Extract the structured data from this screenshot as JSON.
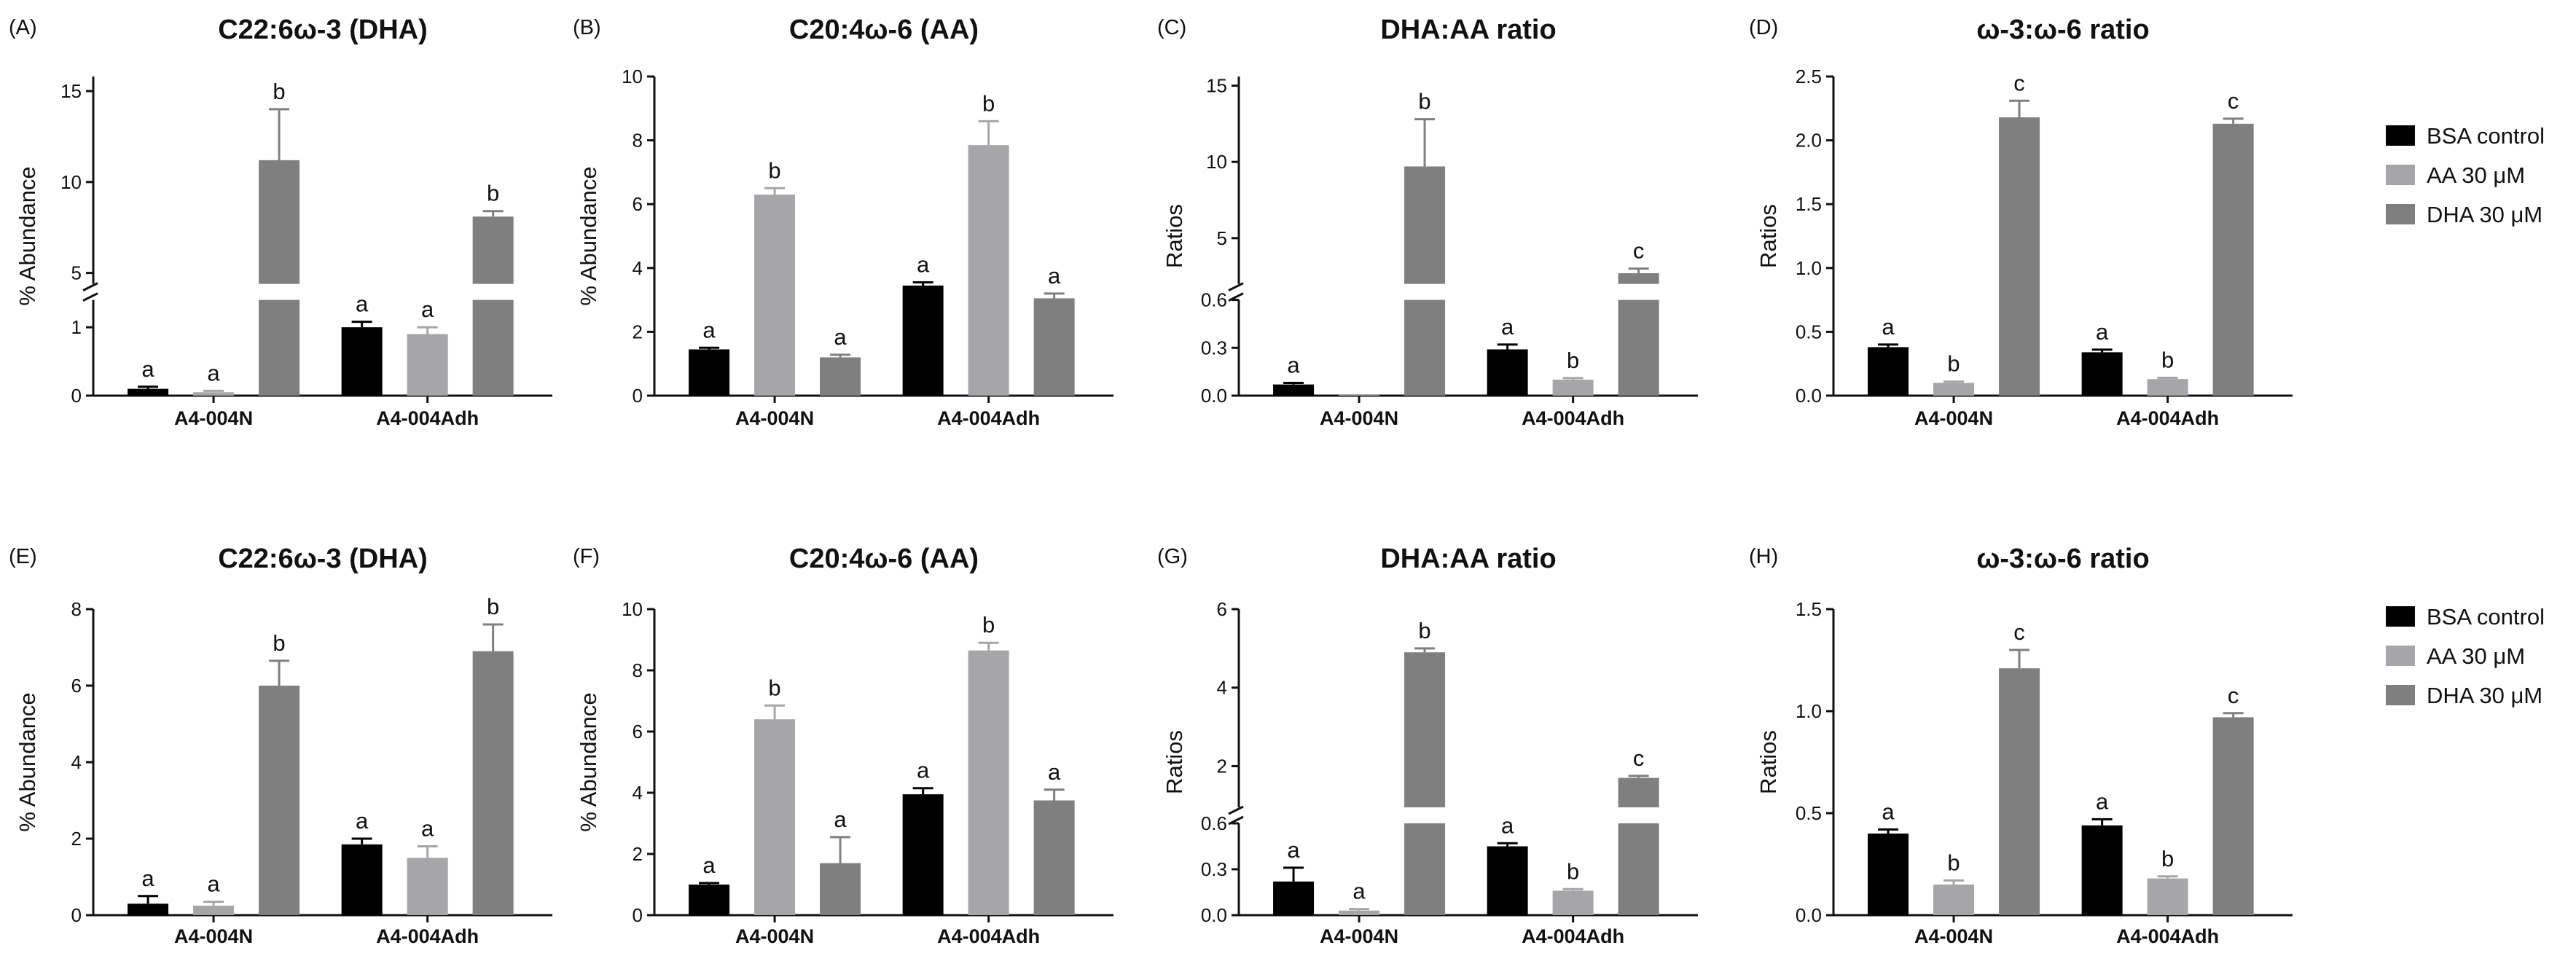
{
  "colors": {
    "bsa": "#000000",
    "aa": "#a6a6a8",
    "dha": "#7f7f7f",
    "axis": "#111111"
  },
  "legends": [
    {
      "entries": [
        {
          "name": "BSA control",
          "color": "#000000"
        },
        {
          "name": "AA 30 μM",
          "color": "#a6a6a8"
        },
        {
          "name": "DHA 30 μM",
          "color": "#7f7f7f"
        }
      ]
    },
    {
      "entries": [
        {
          "name": "BSA control",
          "color": "#000000"
        },
        {
          "name": "AA 30 μM",
          "color": "#a6a6a8"
        },
        {
          "name": "DHA 30 μM",
          "color": "#7f7f7f"
        }
      ]
    }
  ],
  "chart_data": [
    {
      "type": "bar",
      "letter": "(A)",
      "title": "C22:6ω-3 (DHA)",
      "ylabel": "% Abundance",
      "categories": [
        "A4-004N",
        "A4-004Adh"
      ],
      "broken_axis": true,
      "lower_range": [
        0,
        1.4
      ],
      "lower_ticks": [
        0,
        1
      ],
      "upper_range": [
        4.4,
        15.8
      ],
      "upper_ticks": [
        5,
        10,
        15
      ],
      "series": [
        {
          "name": "BSA control",
          "values": [
            0.1,
            1.0
          ],
          "errors": [
            0.03,
            0.08
          ],
          "labels": [
            "a",
            "a"
          ]
        },
        {
          "name": "AA 30 μM",
          "values": [
            0.05,
            0.9
          ],
          "errors": [
            0.02,
            0.1
          ],
          "labels": [
            "a",
            "a"
          ]
        },
        {
          "name": "DHA 30 μM",
          "values": [
            11.2,
            8.1
          ],
          "errors": [
            2.8,
            0.3
          ],
          "labels": [
            "b",
            "b"
          ]
        }
      ]
    },
    {
      "type": "bar",
      "letter": "(B)",
      "title": "C20:4ω-6 (AA)",
      "ylabel": "% Abundance",
      "categories": [
        "A4-004N",
        "A4-004Adh"
      ],
      "broken_axis": false,
      "ylim": [
        0,
        10
      ],
      "yticks": [
        0,
        2,
        4,
        6,
        8,
        10
      ],
      "series": [
        {
          "name": "BSA control",
          "values": [
            1.45,
            3.45
          ],
          "errors": [
            0.05,
            0.1
          ],
          "labels": [
            "a",
            "a"
          ]
        },
        {
          "name": "AA 30 μM",
          "values": [
            6.3,
            7.85
          ],
          "errors": [
            0.2,
            0.75
          ],
          "labels": [
            "b",
            "b"
          ]
        },
        {
          "name": "DHA 30 μM",
          "values": [
            1.2,
            3.05
          ],
          "errors": [
            0.08,
            0.15
          ],
          "labels": [
            "a",
            "a"
          ]
        }
      ]
    },
    {
      "type": "bar",
      "letter": "(C)",
      "title": "DHA:AA ratio",
      "ylabel": "Ratios",
      "categories": [
        "A4-004N",
        "A4-004Adh"
      ],
      "broken_axis": true,
      "lower_range": [
        0,
        0.6
      ],
      "lower_ticks": [
        0.0,
        0.3,
        0.6
      ],
      "upper_range": [
        2.0,
        15.6
      ],
      "upper_ticks": [
        5,
        10,
        15
      ],
      "series": [
        {
          "name": "BSA control",
          "values": [
            0.07,
            0.29
          ],
          "errors": [
            0.01,
            0.03
          ],
          "labels": [
            "a",
            "a"
          ]
        },
        {
          "name": "AA 30 μM",
          "values": [
            0.005,
            0.1
          ],
          "errors": [
            0.002,
            0.01
          ],
          "labels": [
            "",
            "b"
          ]
        },
        {
          "name": "DHA 30 μM",
          "values": [
            9.7,
            2.7
          ],
          "errors": [
            3.1,
            0.3
          ],
          "labels": [
            "b",
            "c"
          ]
        }
      ]
    },
    {
      "type": "bar",
      "letter": "(D)",
      "title": "ω-3:ω-6 ratio",
      "ylabel": "Ratios",
      "categories": [
        "A4-004N",
        "A4-004Adh"
      ],
      "broken_axis": false,
      "ylim": [
        0,
        2.5
      ],
      "yticks": [
        0.0,
        0.5,
        1.0,
        1.5,
        2.0,
        2.5
      ],
      "series": [
        {
          "name": "BSA control",
          "values": [
            0.38,
            0.34
          ],
          "errors": [
            0.02,
            0.02
          ],
          "labels": [
            "a",
            "a"
          ]
        },
        {
          "name": "AA 30 μM",
          "values": [
            0.1,
            0.13
          ],
          "errors": [
            0.01,
            0.01
          ],
          "labels": [
            "b",
            "b"
          ]
        },
        {
          "name": "DHA 30 μM",
          "values": [
            2.18,
            2.13
          ],
          "errors": [
            0.13,
            0.04
          ],
          "labels": [
            "c",
            "c"
          ]
        }
      ]
    },
    {
      "type": "bar",
      "letter": "(E)",
      "title": "C22:6ω-3 (DHA)",
      "ylabel": "% Abundance",
      "categories": [
        "A4-004N",
        "A4-004Adh"
      ],
      "broken_axis": false,
      "ylim": [
        0,
        8
      ],
      "yticks": [
        0,
        2,
        4,
        6,
        8
      ],
      "series": [
        {
          "name": "BSA control",
          "values": [
            0.3,
            1.85
          ],
          "errors": [
            0.2,
            0.15
          ],
          "labels": [
            "a",
            "a"
          ]
        },
        {
          "name": "AA 30 μM",
          "values": [
            0.25,
            1.5
          ],
          "errors": [
            0.1,
            0.3
          ],
          "labels": [
            "a",
            "a"
          ]
        },
        {
          "name": "DHA 30 μM",
          "values": [
            6.0,
            6.9
          ],
          "errors": [
            0.65,
            0.7
          ],
          "labels": [
            "b",
            "b"
          ]
        }
      ]
    },
    {
      "type": "bar",
      "letter": "(F)",
      "title": "C20:4ω-6 (AA)",
      "ylabel": "% Abundance",
      "categories": [
        "A4-004N",
        "A4-004Adh"
      ],
      "broken_axis": false,
      "ylim": [
        0,
        10
      ],
      "yticks": [
        0,
        2,
        4,
        6,
        8,
        10
      ],
      "series": [
        {
          "name": "BSA control",
          "values": [
            1.0,
            3.95
          ],
          "errors": [
            0.05,
            0.2
          ],
          "labels": [
            "a",
            "a"
          ]
        },
        {
          "name": "AA 30 μM",
          "values": [
            6.4,
            8.65
          ],
          "errors": [
            0.45,
            0.25
          ],
          "labels": [
            "b",
            "b"
          ]
        },
        {
          "name": "DHA 30 μM",
          "values": [
            1.7,
            3.75
          ],
          "errors": [
            0.85,
            0.35
          ],
          "labels": [
            "a",
            "a"
          ]
        }
      ]
    },
    {
      "type": "bar",
      "letter": "(G)",
      "title": "DHA:AA ratio",
      "ylabel": "Ratios",
      "categories": [
        "A4-004N",
        "A4-004Adh"
      ],
      "broken_axis": true,
      "lower_range": [
        0,
        0.6
      ],
      "lower_ticks": [
        0.0,
        0.3,
        0.6
      ],
      "upper_range": [
        0.95,
        6.0
      ],
      "upper_ticks": [
        2,
        4,
        6
      ],
      "series": [
        {
          "name": "BSA control",
          "values": [
            0.22,
            0.45
          ],
          "errors": [
            0.09,
            0.02
          ],
          "labels": [
            "a",
            "a"
          ]
        },
        {
          "name": "AA 30 μM",
          "values": [
            0.03,
            0.16
          ],
          "errors": [
            0.01,
            0.01
          ],
          "labels": [
            "a",
            "b"
          ]
        },
        {
          "name": "DHA 30 μM",
          "values": [
            4.9,
            1.7
          ],
          "errors": [
            0.1,
            0.05
          ],
          "labels": [
            "b",
            "c"
          ]
        }
      ]
    },
    {
      "type": "bar",
      "letter": "(H)",
      "title": "ω-3:ω-6 ratio",
      "ylabel": "Ratios",
      "categories": [
        "A4-004N",
        "A4-004Adh"
      ],
      "broken_axis": false,
      "ylim": [
        0,
        1.5
      ],
      "yticks": [
        0.0,
        0.5,
        1.0,
        1.5
      ],
      "series": [
        {
          "name": "BSA control",
          "values": [
            0.4,
            0.44
          ],
          "errors": [
            0.02,
            0.03
          ],
          "labels": [
            "a",
            "a"
          ]
        },
        {
          "name": "AA 30 μM",
          "values": [
            0.15,
            0.18
          ],
          "errors": [
            0.02,
            0.01
          ],
          "labels": [
            "b",
            "b"
          ]
        },
        {
          "name": "DHA 30 μM",
          "values": [
            1.21,
            0.97
          ],
          "errors": [
            0.09,
            0.02
          ],
          "labels": [
            "c",
            "c"
          ]
        }
      ]
    }
  ]
}
